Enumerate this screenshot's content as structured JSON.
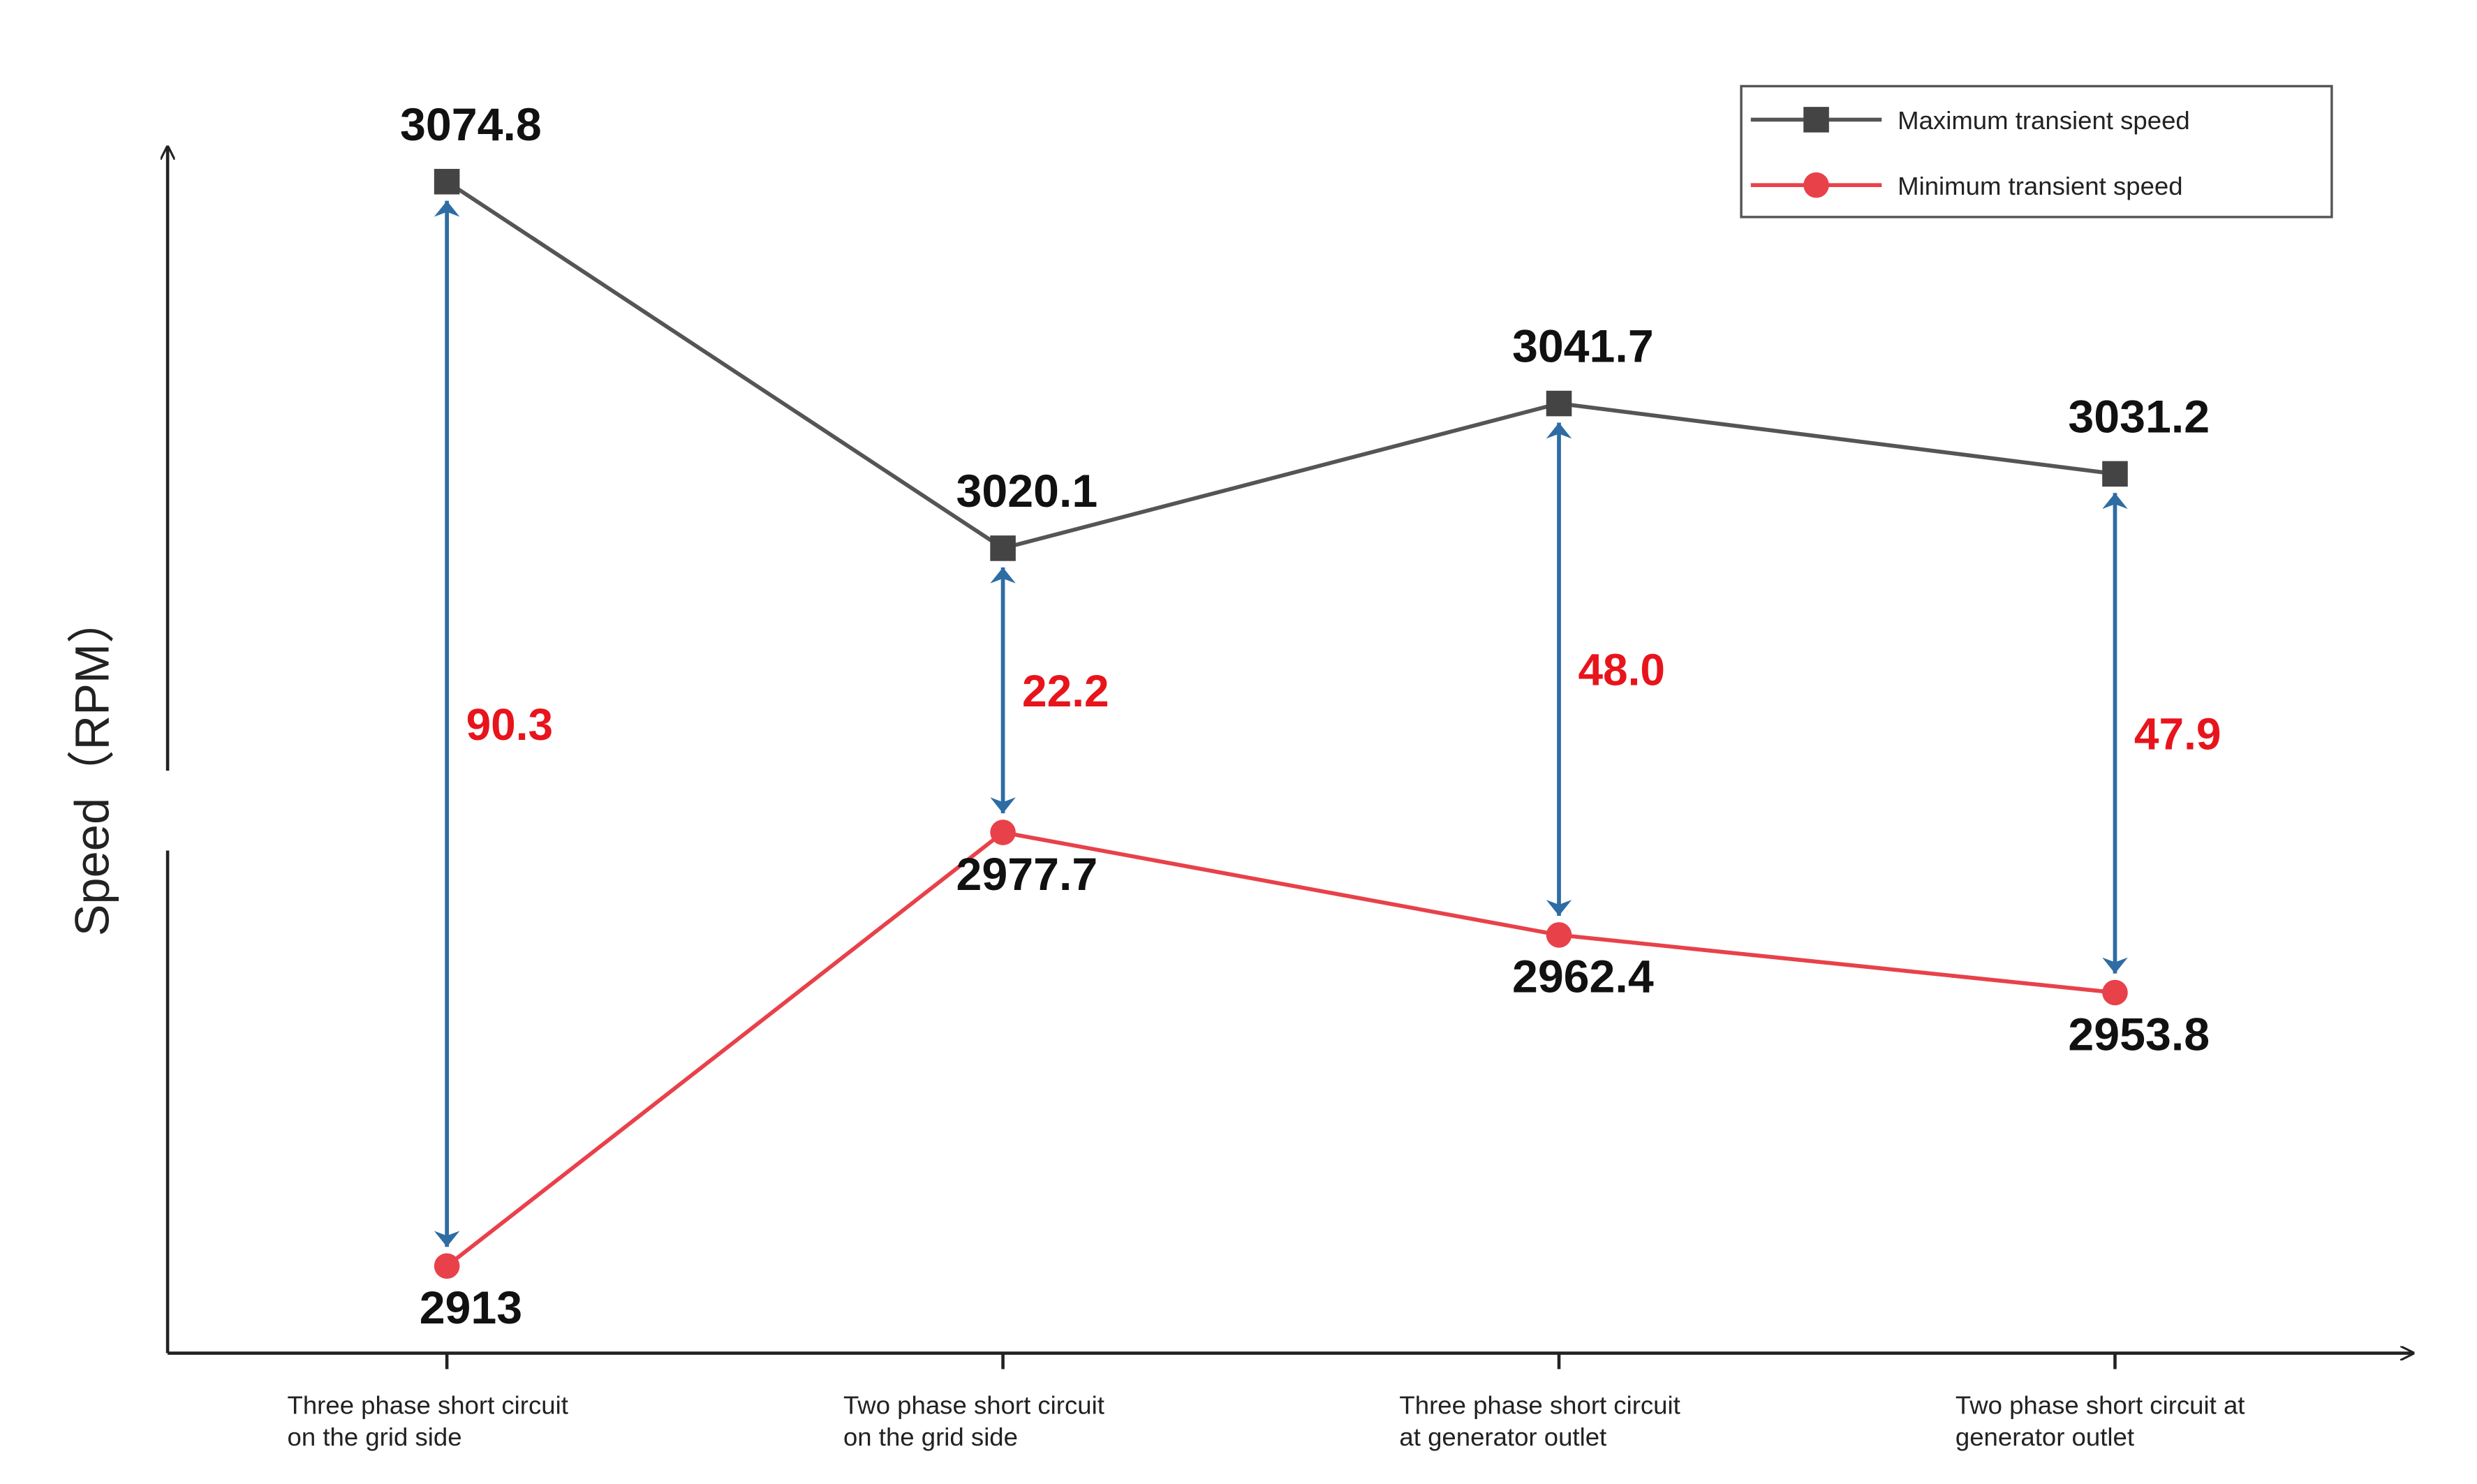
{
  "chart_data": {
    "type": "line",
    "y_label": "Speed（RPM）",
    "categories": [
      [
        "Three phase short circuit",
        "on the grid side"
      ],
      [
        "Two phase short circuit",
        "on the grid side"
      ],
      [
        "Three phase short circuit",
        "at generator outlet"
      ],
      [
        "Two phase short circuit at",
        "generator outlet"
      ]
    ],
    "series": [
      {
        "name": "Maximum transient speed",
        "color": "#555555",
        "marker": "square",
        "values": [
          3074.8,
          3020.1,
          3041.7,
          3031.2
        ]
      },
      {
        "name": "Minimum transient speed",
        "color": "#e8414a",
        "marker": "circle",
        "values": [
          2913,
          2977.7,
          2962.4,
          2953.8
        ]
      }
    ],
    "differences": {
      "color": "#e8141c",
      "arrow_color": "#2e6ca4",
      "values": [
        90.3,
        22.2,
        48.0,
        47.9
      ],
      "value_labels": [
        "90.3",
        "22.2",
        "48.0",
        "47.9"
      ]
    },
    "ylim": [
      2900,
      3080
    ],
    "legend": "upper right"
  }
}
